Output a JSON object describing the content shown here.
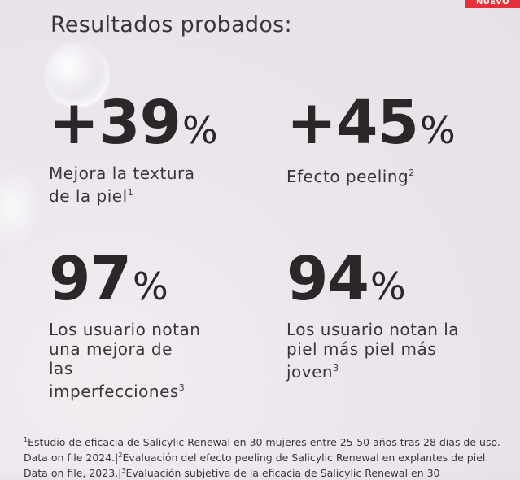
{
  "badge": "NUEVO",
  "title": "Resultados probados:",
  "stats": [
    {
      "value": "+39",
      "unit": "%",
      "label": "Mejora la textura\nde la piel",
      "ref": "1"
    },
    {
      "value": "+45",
      "unit": "%",
      "label": "Efecto peeling",
      "ref": "2"
    },
    {
      "value": "97",
      "unit": "%",
      "label": "Los usuario notan\nuna  mejora de\nlas\nimperfecciones",
      "ref": "3"
    },
    {
      "value": "94",
      "unit": "%",
      "label": "Los usuario notan la\npiel más piel más\njoven",
      "ref": "3"
    }
  ],
  "footnote": {
    "ref1": "1",
    "text1": "Estudio de eficacia de Salicylic Renewal en 30 mujeres entre 25-50 años tras 28 días de uso. Data on file 2024.|",
    "ref2": "2",
    "text2": "Evaluación del efecto peeling de Salicylic Renewal en explantes de piel. Data on file, 2023.|",
    "ref3": "3",
    "text3": "Evaluación subjetiva de la eficacia de Salicylic Renewal en 30"
  }
}
